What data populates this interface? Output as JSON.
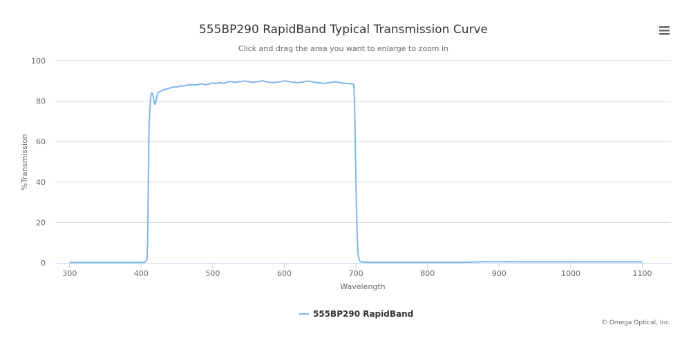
{
  "chart_data": {
    "type": "line",
    "title": "555BP290 RapidBand Typical Transmission Curve",
    "subtitle": "Click and drag the area you want to enlarge to zoom in",
    "xlabel": "Wavelength",
    "ylabel": "%Transmission",
    "xlim": [
      280,
      1140
    ],
    "ylim": [
      0,
      100
    ],
    "x_ticks": [
      300,
      400,
      500,
      600,
      700,
      800,
      900,
      1000,
      1100
    ],
    "y_ticks": [
      0,
      20,
      40,
      60,
      80,
      100
    ],
    "grid": "horizontal",
    "legend_position": "bottom-center",
    "series": [
      {
        "name": "555BP290 RapidBand",
        "color": "#7cb5ec",
        "points": [
          [
            300,
            0.2
          ],
          [
            350,
            0.2
          ],
          [
            400,
            0.2
          ],
          [
            405,
            0.3
          ],
          [
            408,
            1.5
          ],
          [
            409,
            10
          ],
          [
            410,
            40
          ],
          [
            411,
            68
          ],
          [
            412,
            76
          ],
          [
            413,
            81
          ],
          [
            414,
            83.5
          ],
          [
            415,
            84
          ],
          [
            416,
            83.5
          ],
          [
            417,
            82
          ],
          [
            418,
            80
          ],
          [
            419,
            78.5
          ],
          [
            420,
            78.8
          ],
          [
            421,
            80.5
          ],
          [
            422,
            82.5
          ],
          [
            423,
            84
          ],
          [
            425,
            84.5
          ],
          [
            428,
            85
          ],
          [
            430,
            85.5
          ],
          [
            435,
            86
          ],
          [
            440,
            86.5
          ],
          [
            445,
            87
          ],
          [
            450,
            87
          ],
          [
            455,
            87.5
          ],
          [
            460,
            87.5
          ],
          [
            465,
            88
          ],
          [
            470,
            88.2
          ],
          [
            475,
            88
          ],
          [
            480,
            88.3
          ],
          [
            485,
            88.6
          ],
          [
            490,
            88
          ],
          [
            495,
            88.5
          ],
          [
            500,
            89
          ],
          [
            505,
            88.7
          ],
          [
            510,
            89.2
          ],
          [
            515,
            88.8
          ],
          [
            520,
            89.4
          ],
          [
            525,
            89.8
          ],
          [
            530,
            89.3
          ],
          [
            535,
            89.5
          ],
          [
            540,
            89.7
          ],
          [
            545,
            90
          ],
          [
            550,
            89.6
          ],
          [
            555,
            89.4
          ],
          [
            560,
            89.5
          ],
          [
            565,
            89.8
          ],
          [
            570,
            90
          ],
          [
            575,
            89.6
          ],
          [
            580,
            89.3
          ],
          [
            585,
            89.2
          ],
          [
            590,
            89.4
          ],
          [
            595,
            89.7
          ],
          [
            600,
            90
          ],
          [
            605,
            89.8
          ],
          [
            610,
            89.5
          ],
          [
            615,
            89.3
          ],
          [
            620,
            89.2
          ],
          [
            625,
            89.4
          ],
          [
            630,
            89.8
          ],
          [
            635,
            89.9
          ],
          [
            640,
            89.5
          ],
          [
            645,
            89.2
          ],
          [
            650,
            89
          ],
          [
            655,
            88.8
          ],
          [
            660,
            89
          ],
          [
            665,
            89.3
          ],
          [
            670,
            89.6
          ],
          [
            675,
            89.4
          ],
          [
            680,
            89
          ],
          [
            685,
            88.8
          ],
          [
            690,
            88.7
          ],
          [
            695,
            88.5
          ],
          [
            697,
            88
          ],
          [
            698,
            80
          ],
          [
            699,
            60
          ],
          [
            700,
            40
          ],
          [
            701,
            22
          ],
          [
            702,
            10
          ],
          [
            703,
            4
          ],
          [
            705,
            1
          ],
          [
            708,
            0.4
          ],
          [
            720,
            0.3
          ],
          [
            800,
            0.3
          ],
          [
            850,
            0.3
          ],
          [
            880,
            0.6
          ],
          [
            900,
            0.6
          ],
          [
            950,
            0.5
          ],
          [
            1000,
            0.5
          ],
          [
            1050,
            0.5
          ],
          [
            1100,
            0.5
          ]
        ]
      }
    ]
  },
  "credit": "© Omega Optical, Inc.",
  "menu": {
    "icon": "hamburger-menu-icon"
  }
}
